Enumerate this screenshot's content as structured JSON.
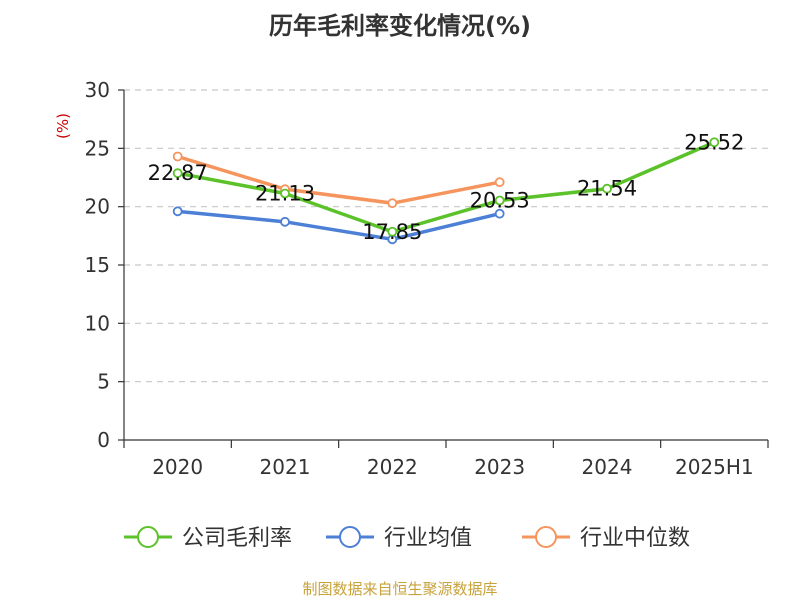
{
  "chart_data": {
    "type": "line",
    "title": "历年毛利率变化情况(%)",
    "ylabel": "(%)",
    "xlabel": "",
    "categories": [
      "2020",
      "2021",
      "2022",
      "2023",
      "2024",
      "2025H1"
    ],
    "ylim": [
      0,
      30
    ],
    "yticks": [
      0,
      5,
      10,
      15,
      20,
      25,
      30
    ],
    "grid": true,
    "legend_position": "bottom",
    "series": [
      {
        "name": "公司毛利率",
        "color": "#5bc229",
        "values": [
          22.87,
          21.13,
          17.85,
          20.53,
          21.54,
          25.52
        ],
        "labels": [
          "22.87",
          "21.13",
          "17.85",
          "20.53",
          "21.54",
          "25.52"
        ]
      },
      {
        "name": "行业均值",
        "color": "#4c7fd6",
        "values": [
          19.6,
          18.7,
          17.2,
          19.4,
          null,
          null
        ]
      },
      {
        "name": "行业中位数",
        "color": "#f5945c",
        "values": [
          24.3,
          21.5,
          20.3,
          22.1,
          null,
          null
        ]
      }
    ]
  },
  "source_note": "制图数据来自恒生聚源数据库"
}
